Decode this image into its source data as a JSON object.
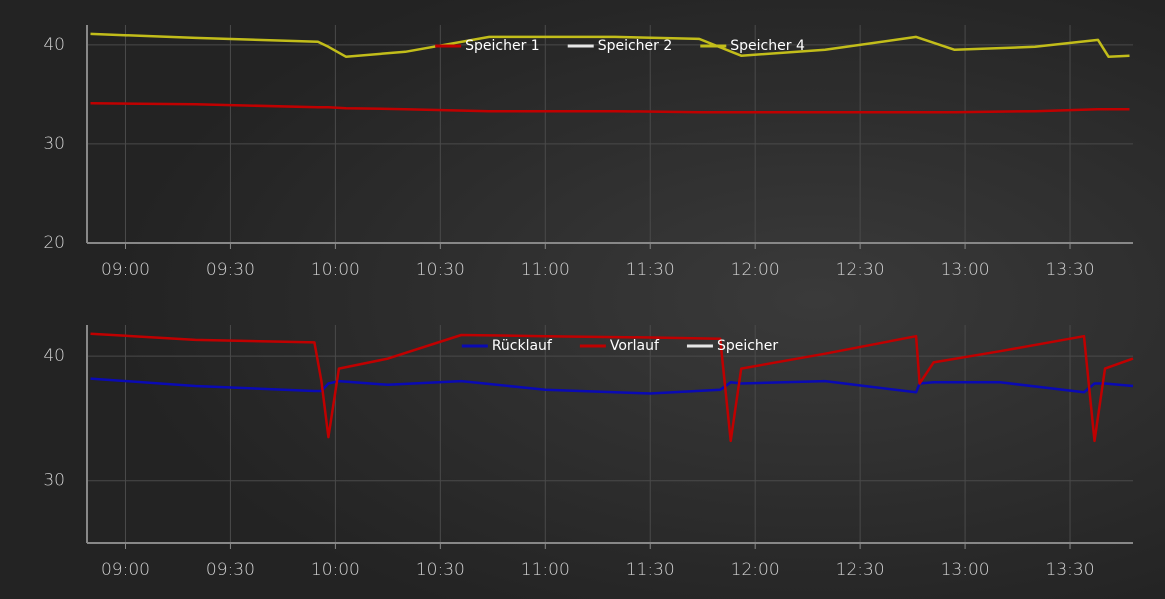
{
  "chart_data": [
    {
      "type": "line",
      "x": [
        530,
        560,
        595,
        598,
        603,
        620,
        644,
        680,
        704,
        716,
        740,
        766,
        777,
        800,
        818,
        821,
        827
      ],
      "series": [
        {
          "name": "Speicher 1",
          "color": "#c00000",
          "values": [
            34.1,
            34.0,
            33.7,
            33.7,
            33.6,
            33.5,
            33.3,
            33.3,
            33.2,
            33.2,
            33.2,
            33.2,
            33.2,
            33.3,
            33.5,
            33.5,
            33.5
          ]
        },
        {
          "name": "Speicher 2",
          "color": "#e6e6e6",
          "values": [
            null,
            null,
            null,
            null,
            null,
            null,
            null,
            null,
            null,
            null,
            null,
            null,
            null,
            null,
            null,
            null,
            null
          ]
        },
        {
          "name": "Speicher 4",
          "color": "#c2bd1a",
          "values": [
            41.1,
            40.7,
            40.3,
            39.8,
            38.8,
            39.3,
            40.8,
            40.8,
            40.6,
            38.9,
            39.5,
            40.8,
            39.5,
            39.8,
            40.5,
            38.8,
            38.9
          ]
        }
      ],
      "xlim": [
        529,
        828
      ],
      "xticks": [
        {
          "value": 540,
          "label": "09:00"
        },
        {
          "value": 570,
          "label": "09:30"
        },
        {
          "value": 600,
          "label": "10:00"
        },
        {
          "value": 630,
          "label": "10:30"
        },
        {
          "value": 660,
          "label": "11:00"
        },
        {
          "value": 690,
          "label": "11:30"
        },
        {
          "value": 720,
          "label": "12:00"
        },
        {
          "value": 750,
          "label": "12:30"
        },
        {
          "value": 780,
          "label": "13:00"
        },
        {
          "value": 810,
          "label": "13:30"
        }
      ],
      "ylim": [
        20,
        42
      ],
      "yticks": [
        20,
        30,
        40
      ],
      "grid": true,
      "legend": "top"
    },
    {
      "type": "line",
      "x": [
        530,
        560,
        594,
        596,
        598,
        601,
        615,
        636,
        660,
        690,
        710,
        713,
        716,
        740,
        766,
        767,
        771,
        790,
        814,
        817,
        820,
        828
      ],
      "series": [
        {
          "name": "Rücklauf",
          "color": "#0a0ab4",
          "values": [
            38.2,
            37.6,
            37.2,
            37.2,
            37.8,
            38.0,
            37.7,
            38.0,
            37.3,
            37.0,
            37.3,
            37.9,
            37.8,
            38.0,
            37.1,
            37.8,
            37.9,
            37.9,
            37.1,
            37.8,
            37.8,
            37.6
          ]
        },
        {
          "name": "Vorlauf",
          "color": "#c00000",
          "values": [
            41.8,
            41.3,
            41.1,
            38.0,
            33.5,
            39.0,
            39.8,
            41.7,
            41.6,
            41.5,
            41.4,
            33.2,
            39.0,
            40.2,
            41.6,
            37.8,
            39.5,
            40.4,
            41.6,
            33.2,
            39.0,
            39.8
          ]
        },
        {
          "name": "Speicher",
          "color": "#e6e6e6",
          "values": [
            null,
            null,
            null,
            null,
            null,
            null,
            null,
            null,
            null,
            null,
            null,
            null,
            null,
            null,
            null,
            null,
            null,
            null,
            null,
            null,
            null,
            null
          ]
        }
      ],
      "xlim": [
        529,
        828
      ],
      "xticks": [
        {
          "value": 540,
          "label": "09:00"
        },
        {
          "value": 570,
          "label": "09:30"
        },
        {
          "value": 600,
          "label": "10:00"
        },
        {
          "value": 630,
          "label": "10:30"
        },
        {
          "value": 660,
          "label": "11:00"
        },
        {
          "value": 690,
          "label": "11:30"
        },
        {
          "value": 720,
          "label": "12:00"
        },
        {
          "value": 750,
          "label": "12:30"
        },
        {
          "value": 780,
          "label": "13:00"
        },
        {
          "value": 810,
          "label": "13:30"
        }
      ],
      "ylim": [
        25,
        42.5
      ],
      "yticks": [
        30,
        40
      ],
      "grid": true,
      "legend": "top"
    }
  ]
}
